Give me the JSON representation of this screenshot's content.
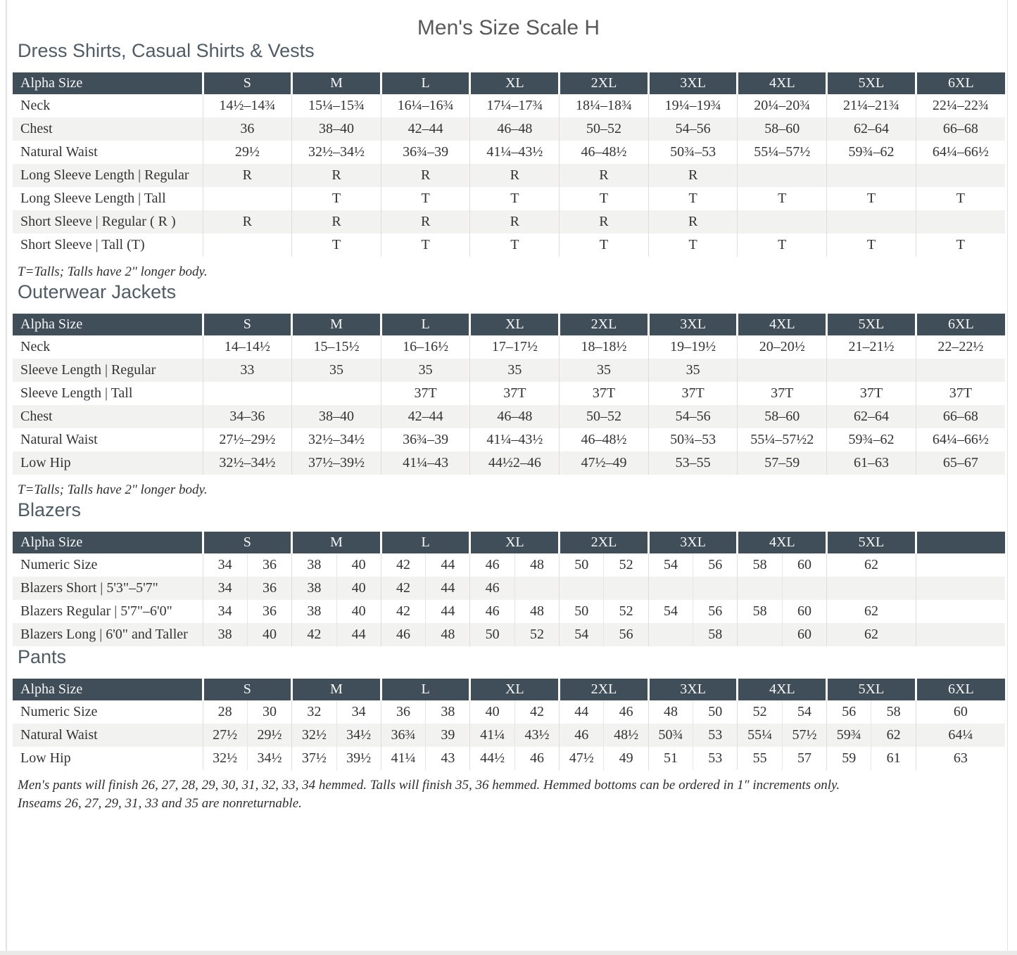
{
  "page": {
    "title": "Men's Size Scale H"
  },
  "colors": {
    "header_bg": "#3f4e59",
    "header_text": "#f7f7f5",
    "row_alt_bg": "#f2f2f0",
    "row_bg": "#ffffff",
    "body_text": "#333333",
    "heading_text": "#4e5c66",
    "title_text": "#595959"
  },
  "sections": [
    {
      "heading": "Dress Shirts, Casual Shirts & Vests",
      "type": "single",
      "columns": [
        "Alpha Size",
        "S",
        "M",
        "L",
        "XL",
        "2XL",
        "3XL",
        "4XL",
        "5XL",
        "6XL"
      ],
      "rows": [
        {
          "label": "Neck",
          "values": [
            "14½–14¾",
            "15¼–15¾",
            "16¼–16¾",
            "17¼–17¾",
            "18¼–18¾",
            "19¼–19¾",
            "20¼–20¾",
            "21¼–21¾",
            "22¼–22¾"
          ]
        },
        {
          "label": "Chest",
          "values": [
            "36",
            "38–40",
            "42–44",
            "46–48",
            "50–52",
            "54–56",
            "58–60",
            "62–64",
            "66–68"
          ]
        },
        {
          "label": "Natural Waist",
          "values": [
            "29½",
            "32½–34½",
            "36¾–39",
            "41¼–43½",
            "46–48½",
            "50¾–53",
            "55¼–57½",
            "59¾–62",
            "64¼–66½"
          ]
        },
        {
          "label": "Long Sleeve Length  |  Regular",
          "values": [
            "R",
            "R",
            "R",
            "R",
            "R",
            "R",
            "",
            "",
            ""
          ]
        },
        {
          "label": "Long Sleeve Length  |  Tall",
          "values": [
            "",
            "T",
            "T",
            "T",
            "T",
            "T",
            "T",
            "T",
            "T"
          ]
        },
        {
          "label": "Short Sleeve  |  Regular ( R )",
          "values": [
            "R",
            "R",
            "R",
            "R",
            "R",
            "R",
            "",
            "",
            ""
          ]
        },
        {
          "label": "Short Sleeve  |  Tall (T)",
          "values": [
            "",
            "T",
            "T",
            "T",
            "T",
            "T",
            "T",
            "T",
            "T"
          ]
        }
      ],
      "footnote": "T=Talls; Talls have 2\" longer body."
    },
    {
      "heading": "Outerwear Jackets",
      "type": "single",
      "columns": [
        "Alpha Size",
        "S",
        "M",
        "L",
        "XL",
        "2XL",
        "3XL",
        "4XL",
        "5XL",
        "6XL"
      ],
      "rows": [
        {
          "label": "Neck",
          "values": [
            "14–14½",
            "15–15½",
            "16–16½",
            "17–17½",
            "18–18½",
            "19–19½",
            "20–20½",
            "21–21½",
            "22–22½"
          ]
        },
        {
          "label": "Sleeve Length  |  Regular",
          "values": [
            "33",
            "35",
            "35",
            "35",
            "35",
            "35",
            "",
            "",
            ""
          ]
        },
        {
          "label": "Sleeve Length  |  Tall",
          "values": [
            "",
            "",
            "37T",
            "37T",
            "37T",
            "37T",
            "37T",
            "37T",
            "37T"
          ]
        },
        {
          "label": "Chest",
          "values": [
            "34–36",
            "38–40",
            "42–44",
            "46–48",
            "50–52",
            "54–56",
            "58–60",
            "62–64",
            "66–68"
          ]
        },
        {
          "label": "Natural Waist",
          "values": [
            "27½–29½",
            "32½–34½",
            "36¾–39",
            "41¼–43½",
            "46–48½",
            "50¾–53",
            "55¼–57½2",
            "59¾–62",
            "64¼–66½"
          ]
        },
        {
          "label": "Low Hip",
          "values": [
            "32½–34½",
            "37½–39½",
            "41¼–43",
            "44½2–46",
            "47½–49",
            "53–55",
            "57–59",
            "61–63",
            "65–67"
          ]
        }
      ],
      "footnote": "T=Talls; Talls have 2\" longer body."
    },
    {
      "heading": "Blazers",
      "type": "split",
      "columns": [
        "Alpha Size",
        "S",
        "M",
        "L",
        "XL",
        "2XL",
        "3XL",
        "4XL",
        "5XL",
        ""
      ],
      "rows": [
        {
          "label": "Numeric Size",
          "values": [
            [
              "34",
              "36"
            ],
            [
              "38",
              "40"
            ],
            [
              "42",
              "44"
            ],
            [
              "46",
              "48"
            ],
            [
              "50",
              "52"
            ],
            [
              "54",
              "56"
            ],
            [
              "58",
              "60"
            ],
            [
              "62"
            ],
            []
          ]
        },
        {
          "label": "Blazers Short  |  5'3\"–5'7\"",
          "values": [
            [
              "34",
              "36"
            ],
            [
              "38",
              "40"
            ],
            [
              "42",
              "44"
            ],
            [
              "46",
              ""
            ],
            [
              "",
              ""
            ],
            [
              "",
              ""
            ],
            [
              "",
              ""
            ],
            [],
            []
          ]
        },
        {
          "label": "Blazers Regular  |  5'7\"–6'0\"",
          "values": [
            [
              "34",
              "36"
            ],
            [
              "38",
              "40"
            ],
            [
              "42",
              "44"
            ],
            [
              "46",
              "48"
            ],
            [
              "50",
              "52"
            ],
            [
              "54",
              "56"
            ],
            [
              "58",
              "60"
            ],
            [
              "62"
            ],
            []
          ]
        },
        {
          "label": "Blazers Long  |  6'0\" and Taller",
          "values": [
            [
              "38",
              "40"
            ],
            [
              "42",
              "44"
            ],
            [
              "46",
              "48"
            ],
            [
              "50",
              "52"
            ],
            [
              "54",
              "56"
            ],
            [
              "",
              "58"
            ],
            [
              "",
              "60"
            ],
            [
              "62"
            ],
            []
          ]
        }
      ],
      "footnote": ""
    },
    {
      "heading": "Pants",
      "type": "split",
      "columns": [
        "Alpha Size",
        "S",
        "M",
        "L",
        "XL",
        "2XL",
        "3XL",
        "4XL",
        "5XL",
        "6XL"
      ],
      "rows": [
        {
          "label": "Numeric Size",
          "values": [
            [
              "28",
              "30"
            ],
            [
              "32",
              "34"
            ],
            [
              "36",
              "38"
            ],
            [
              "40",
              "42"
            ],
            [
              "44",
              "46"
            ],
            [
              "48",
              "50"
            ],
            [
              "52",
              "54"
            ],
            [
              "56",
              "58"
            ],
            [
              "60"
            ]
          ]
        },
        {
          "label": "Natural Waist",
          "values": [
            [
              "27½",
              "29½"
            ],
            [
              "32½",
              "34½"
            ],
            [
              "36¾",
              "39"
            ],
            [
              "41¼",
              "43½"
            ],
            [
              "46",
              "48½"
            ],
            [
              "50¾",
              "53"
            ],
            [
              "55¼",
              "57½"
            ],
            [
              "59¾",
              "62"
            ],
            [
              "64¼"
            ]
          ]
        },
        {
          "label": "Low Hip",
          "values": [
            [
              "32½",
              "34½"
            ],
            [
              "37½",
              "39½"
            ],
            [
              "41¼",
              "43"
            ],
            [
              "44½",
              "46"
            ],
            [
              "47½",
              "49"
            ],
            [
              "51",
              "53"
            ],
            [
              "55",
              "57"
            ],
            [
              "59",
              "61"
            ],
            [
              "63"
            ]
          ]
        }
      ],
      "footnote": "Men's pants will finish 26, 27, 28, 29, 30, 31, 32, 33, 34 hemmed. Talls will finish 35, 36 hemmed. Hemmed bottoms can be ordered in 1\" increments only.",
      "footnote2": "Inseams 26, 27, 29, 31, 33 and 35 are nonreturnable."
    }
  ]
}
